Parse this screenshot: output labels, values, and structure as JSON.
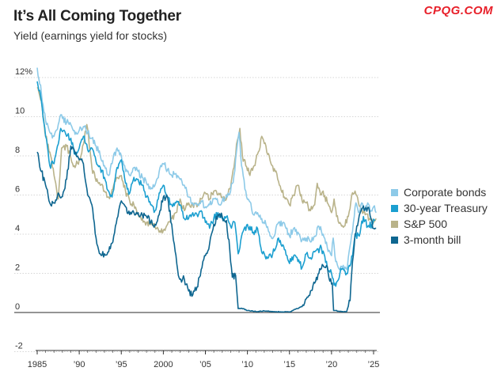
{
  "header": {
    "title": "It’s All Coming Together",
    "subtitle": "Yield (earnings yield for stocks)",
    "watermark": "CPQG.COM"
  },
  "chart_data": {
    "type": "line",
    "title": "It’s All Coming Together",
    "ylabel": "Yield (earnings yield for stocks)",
    "xlim": [
      1985,
      2025.5
    ],
    "ylim": [
      -2,
      12.5
    ],
    "x_ticks": [
      {
        "value": 1985,
        "label": "1985"
      },
      {
        "value": 1990,
        "label": "’90"
      },
      {
        "value": 1995,
        "label": "’95"
      },
      {
        "value": 2000,
        "label": "2000"
      },
      {
        "value": 2005,
        "label": "’05"
      },
      {
        "value": 2010,
        "label": "’10"
      },
      {
        "value": 2015,
        "label": "’15"
      },
      {
        "value": 2020,
        "label": "’20"
      },
      {
        "value": 2025,
        "label": "’25"
      }
    ],
    "y_ticks": [
      {
        "value": 12,
        "label": "12%"
      },
      {
        "value": 10,
        "label": "10"
      },
      {
        "value": 8,
        "label": "8"
      },
      {
        "value": 6,
        "label": "6"
      },
      {
        "value": 4,
        "label": "4"
      },
      {
        "value": 2,
        "label": "2"
      },
      {
        "value": 0,
        "label": "0"
      },
      {
        "value": -2,
        "label": "-2"
      }
    ],
    "series": [
      {
        "name": "S&P 500",
        "color": "#b9b38a",
        "x": [
          1985,
          1985.5,
          1986,
          1986.5,
          1987,
          1987.5,
          1987.9,
          1988.5,
          1989,
          1989.5,
          1990,
          1990.5,
          1990.9,
          1991.5,
          1992,
          1992.5,
          1993,
          1993.5,
          1994,
          1994.5,
          1995,
          1995.5,
          1996,
          1996.5,
          1997,
          1997.5,
          1998,
          1998.5,
          1999,
          1999.5,
          2000,
          2000.5,
          2001,
          2001.5,
          2002,
          2002.5,
          2003,
          2003.5,
          2004,
          2004.5,
          2005,
          2005.5,
          2006,
          2006.5,
          2007,
          2007.5,
          2008,
          2008.4,
          2008.8,
          2009.1,
          2009.4,
          2009.8,
          2010.3,
          2010.8,
          2011.3,
          2011.7,
          2012.2,
          2012.8,
          2013.3,
          2013.8,
          2014.5,
          2015,
          2015.5,
          2016,
          2016.5,
          2017,
          2017.5,
          2018,
          2018.3,
          2018.7,
          2019,
          2019.5,
          2020,
          2020.3,
          2020.6,
          2021,
          2021.5,
          2022,
          2022.4,
          2022.8,
          2023.2,
          2023.6,
          2024,
          2024.5,
          2025,
          2025.3
        ],
        "y": [
          11.5,
          10.8,
          9.0,
          8.2,
          7.0,
          5.8,
          8.4,
          8.5,
          7.9,
          7.4,
          7.8,
          8.6,
          9.6,
          7.4,
          6.7,
          6.5,
          6.2,
          5.9,
          6.3,
          6.9,
          7.0,
          6.2,
          5.7,
          5.5,
          5.0,
          4.8,
          4.6,
          4.5,
          4.4,
          4.1,
          4.2,
          4.5,
          4.8,
          5.1,
          5.8,
          5.2,
          5.6,
          5.5,
          5.4,
          5.8,
          6.1,
          5.8,
          6.2,
          6.0,
          5.9,
          5.8,
          6.4,
          7.4,
          8.8,
          9.4,
          8.0,
          7.5,
          7.0,
          7.5,
          8.2,
          9.0,
          8.5,
          7.6,
          7.2,
          6.5,
          5.8,
          5.5,
          6.0,
          6.5,
          5.7,
          5.6,
          5.2,
          5.5,
          6.6,
          6.0,
          6.2,
          5.6,
          5.1,
          5.8,
          4.9,
          4.6,
          4.4,
          4.9,
          6.0,
          6.2,
          5.6,
          5.3,
          5.0,
          4.8,
          4.6,
          4.8
        ]
      },
      {
        "name": "Corporate bonds",
        "color": "#8dcae8",
        "x": [
          1985,
          1985.5,
          1986,
          1986.5,
          1987,
          1987.5,
          1987.8,
          1988.5,
          1989,
          1989.5,
          1990,
          1990.5,
          1991,
          1991.5,
          1992,
          1992.5,
          1993,
          1993.5,
          1994,
          1994.5,
          1995,
          1995.5,
          1996,
          1996.5,
          1997,
          1997.5,
          1998,
          1998.5,
          1999,
          1999.5,
          2000,
          2000.5,
          2001,
          2001.5,
          2002,
          2002.5,
          2003,
          2003.5,
          2004,
          2004.5,
          2005,
          2005.5,
          2006,
          2006.5,
          2007,
          2007.5,
          2008,
          2008.4,
          2008.8,
          2009,
          2009.3,
          2009.7,
          2010.2,
          2010.7,
          2011.2,
          2011.7,
          2012.2,
          2012.7,
          2013.2,
          2013.7,
          2014.5,
          2015,
          2015.5,
          2016,
          2016.5,
          2017,
          2017.5,
          2018,
          2018.5,
          2019,
          2019.5,
          2020,
          2020.2,
          2020.5,
          2020.8,
          2021.3,
          2021.8,
          2022.2,
          2022.6,
          2022.9,
          2023.2,
          2023.6,
          2023.9,
          2024.3,
          2024.7,
          2025,
          2025.3
        ],
        "y": [
          12.5,
          11.2,
          9.8,
          9.2,
          9.0,
          9.6,
          10.1,
          9.7,
          9.6,
          9.1,
          9.3,
          9.5,
          9.2,
          8.9,
          8.5,
          8.0,
          7.5,
          7.0,
          7.8,
          8.4,
          8.0,
          7.2,
          7.0,
          7.4,
          7.2,
          6.9,
          6.6,
          6.3,
          6.5,
          7.2,
          7.6,
          7.3,
          7.0,
          7.1,
          6.8,
          6.5,
          5.9,
          5.6,
          5.5,
          5.7,
          5.4,
          5.5,
          5.8,
          5.6,
          5.7,
          6.0,
          6.2,
          7.0,
          8.6,
          9.2,
          7.5,
          6.3,
          5.7,
          5.0,
          5.1,
          4.8,
          4.5,
          3.9,
          3.9,
          4.6,
          4.4,
          3.9,
          4.3,
          4.1,
          3.7,
          3.8,
          3.6,
          3.9,
          4.4,
          4.0,
          3.3,
          2.9,
          3.8,
          2.6,
          2.3,
          2.3,
          2.2,
          3.4,
          4.6,
          5.6,
          5.1,
          5.6,
          5.2,
          5.6,
          5.2,
          5.4,
          5.1
        ]
      },
      {
        "name": "30-year Treasury",
        "color": "#1b9fd0",
        "x": [
          1985,
          1985.5,
          1986,
          1986.5,
          1987,
          1987.5,
          1987.8,
          1988.5,
          1989,
          1989.5,
          1990,
          1990.5,
          1991,
          1991.5,
          1992,
          1992.5,
          1993,
          1993.5,
          1993.9,
          1994.5,
          1995,
          1995.5,
          1996,
          1996.5,
          1997,
          1997.5,
          1998,
          1998.5,
          1999,
          1999.5,
          2000,
          2000.5,
          2001,
          2001.5,
          2002,
          2002.5,
          2003,
          2003.5,
          2004,
          2004.5,
          2005,
          2005.5,
          2006,
          2006.5,
          2007,
          2007.5,
          2008,
          2008.5,
          2008.9,
          2009.3,
          2010,
          2010.7,
          2011.2,
          2011.8,
          2012.5,
          2013,
          2013.7,
          2014.5,
          2015,
          2015.5,
          2016,
          2016.5,
          2017,
          2017.5,
          2018,
          2018.8,
          2019.5,
          2020,
          2020.3,
          2020.7,
          2021.2,
          2021.8,
          2022.3,
          2022.8,
          2023.3,
          2023.8,
          2024.3,
          2024.8,
          2025.2
        ],
        "y": [
          11.8,
          10.8,
          9.0,
          7.5,
          7.6,
          8.6,
          9.4,
          9.0,
          8.9,
          8.1,
          8.4,
          9.0,
          8.3,
          8.4,
          7.7,
          7.4,
          6.9,
          6.2,
          5.9,
          7.4,
          7.8,
          6.6,
          6.1,
          6.9,
          6.8,
          6.5,
          5.9,
          5.5,
          5.2,
          6.1,
          6.5,
          5.9,
          5.5,
          5.6,
          5.5,
          4.8,
          4.8,
          5.1,
          5.0,
          5.2,
          4.6,
          4.3,
          4.8,
          5.1,
          4.8,
          4.9,
          4.4,
          4.6,
          3.0,
          3.9,
          4.5,
          4.1,
          4.3,
          3.0,
          2.8,
          3.0,
          3.8,
          3.2,
          2.5,
          2.9,
          2.6,
          2.3,
          3.0,
          2.8,
          3.1,
          3.3,
          2.3,
          2.0,
          1.4,
          1.6,
          2.2,
          2.0,
          2.5,
          3.9,
          3.9,
          4.9,
          4.4,
          4.5,
          4.7
        ]
      },
      {
        "name": "3-month bill",
        "color": "#0e6690",
        "x": [
          1985,
          1985.5,
          1986,
          1986.5,
          1987,
          1987.5,
          1987.9,
          1988.5,
          1989,
          1989.4,
          1990,
          1990.5,
          1991,
          1991.5,
          1992,
          1992.5,
          1993,
          1993.5,
          1994,
          1994.5,
          1995,
          1995.5,
          1996,
          1996.5,
          1997,
          1997.5,
          1998,
          1998.5,
          1999,
          1999.5,
          2000,
          2000.5,
          2001,
          2001.3,
          2001.7,
          2001.95,
          2002.5,
          2003,
          2003.5,
          2004,
          2004.5,
          2005,
          2005.5,
          2006,
          2006.5,
          2007,
          2007.5,
          2007.9,
          2008.2,
          2008.6,
          2008.9,
          2009.5,
          2010,
          2011,
          2012,
          2013,
          2014,
          2015,
          2015.9,
          2016.5,
          2017,
          2017.5,
          2018,
          2018.5,
          2019,
          2019.4,
          2019.8,
          2020.1,
          2020.25,
          2020.5,
          2021,
          2021.8,
          2022.2,
          2022.5,
          2022.8,
          2023.2,
          2023.6,
          2024,
          2024.5,
          2025,
          2025.3
        ],
        "y": [
          8.2,
          7.2,
          6.5,
          5.6,
          5.6,
          6.1,
          5.9,
          6.8,
          8.5,
          8.3,
          7.8,
          7.6,
          6.0,
          5.5,
          3.8,
          3.0,
          3.0,
          3.1,
          3.6,
          4.8,
          5.7,
          5.4,
          5.0,
          5.1,
          5.1,
          5.0,
          4.9,
          4.6,
          4.5,
          5.0,
          5.9,
          5.9,
          4.5,
          3.5,
          2.2,
          1.7,
          1.7,
          1.1,
          0.9,
          1.3,
          2.2,
          2.9,
          3.5,
          4.5,
          5.0,
          4.9,
          4.7,
          3.2,
          1.8,
          1.9,
          0.2,
          0.2,
          0.1,
          0.05,
          0.08,
          0.05,
          0.03,
          0.03,
          0.2,
          0.3,
          0.7,
          1.1,
          1.5,
          2.0,
          2.4,
          2.4,
          1.6,
          1.5,
          0.1,
          0.1,
          0.05,
          0.05,
          0.6,
          2.6,
          4.0,
          4.7,
          5.3,
          5.3,
          5.2,
          4.3,
          4.3
        ]
      }
    ],
    "legend": {
      "placement": "right",
      "entries": [
        "Corporate bonds",
        "30-year Treasury",
        "S&P 500",
        "3-month bill"
      ]
    }
  }
}
